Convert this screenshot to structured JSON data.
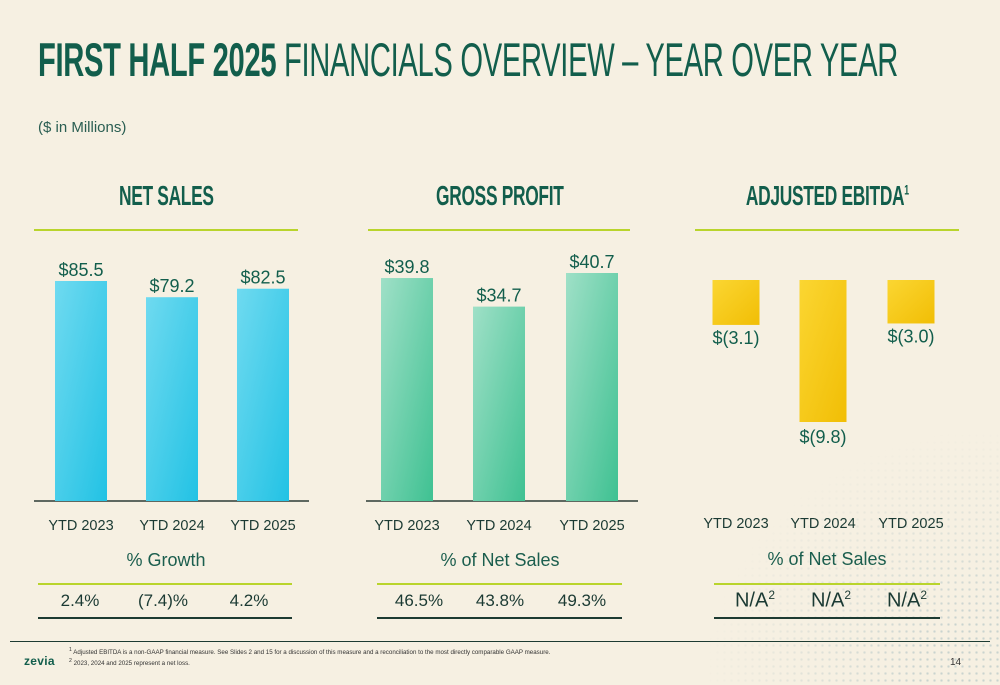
{
  "header": {
    "title_bold": "FIRST HALF 2025",
    "title_rest": "FINANCIALS OVERVIEW – YEAR OVER YEAR",
    "subtitle": "($ in Millions)"
  },
  "colors": {
    "net_sales": "#33c8e6",
    "gross_profit": "#5fd1a9",
    "ebitda": "#f4c710",
    "accent_line": "#b9d42c",
    "dark_green": "#125e4c"
  },
  "chart_data": [
    {
      "type": "bar",
      "title": "NET SALES",
      "categories": [
        "YTD 2023",
        "YTD 2024",
        "YTD 2025"
      ],
      "values": [
        85.5,
        79.2,
        82.5
      ],
      "value_labels": [
        "$85.5",
        "$79.2",
        "$82.5"
      ],
      "metric_label": "% Growth",
      "metric_values": [
        "2.4%",
        "(7.4)%",
        "4.2%"
      ]
    },
    {
      "type": "bar",
      "title": "GROSS PROFIT",
      "categories": [
        "YTD 2023",
        "YTD 2024",
        "YTD 2025"
      ],
      "values": [
        39.8,
        34.7,
        40.7
      ],
      "value_labels": [
        "$39.8",
        "$34.7",
        "$40.7"
      ],
      "metric_label": "% of Net Sales",
      "metric_values": [
        "46.5%",
        "43.8%",
        "49.3%"
      ]
    },
    {
      "type": "bar",
      "title": "ADJUSTED EBITDA",
      "title_sup": "1",
      "categories": [
        "YTD 2023",
        "YTD 2024",
        "YTD 2025"
      ],
      "values": [
        -3.1,
        -9.8,
        -3.0
      ],
      "value_labels": [
        "$(3.1)",
        "$(9.8)",
        "$(3.0)"
      ],
      "metric_label": "% of Net Sales",
      "metric_values": [
        "N/A",
        "N/A",
        "N/A"
      ],
      "metric_sup": "2"
    }
  ],
  "footer": {
    "note1_sup": "1",
    "note1": "Adjusted EBITDA is a non-GAAP financial measure. See Slides 2 and 15 for a discussion of this measure and a reconciliation to the most directly comparable GAAP measure.",
    "note2_sup": "2",
    "note2": "2023, 2024 and 2025 represent a net loss.",
    "logo": "zevia",
    "page": "14"
  }
}
